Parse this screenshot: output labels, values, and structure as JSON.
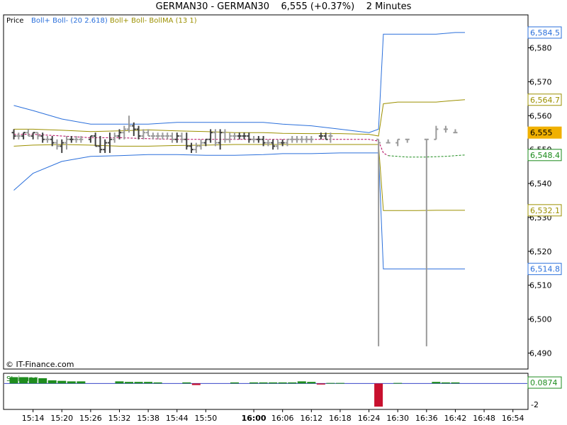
{
  "header": {
    "symbol": "GERMAN30 - GERMAN30",
    "price": "6,555",
    "change": "(+0.37%)",
    "interval": "2 Minutes"
  },
  "legend": {
    "price_label": "Price",
    "boll_label": "Boll+ Boll- (20 2.618)",
    "bollma_label": "Boll+ Boll- BollMA (13 1)"
  },
  "watermark": "© IT-Finance.com",
  "colors": {
    "boll_upper": "#2a6fdb",
    "boll_lower": "#2a6fdb",
    "bollma_band": "#9c9000",
    "bollma_mid": "#1a8a1a",
    "midline": "#b0005a",
    "candle_dark": "#404040",
    "candle_light": "#9a9a9a",
    "histogram_up": "#1e8c1e",
    "histogram_down": "#c8102e",
    "current_price_box": "#f0b000"
  },
  "chart_data": [
    {
      "type": "line",
      "title": "GERMAN30 - GERMAN30  6,555 (+0.37%)  2 Minutes",
      "y_ticks": [
        6490,
        6500,
        6510,
        6520,
        6530,
        6540,
        6550,
        6560,
        6570,
        6580
      ],
      "ylim": [
        6485.5,
        6589.5
      ],
      "x_ticks": [
        "15:14",
        "15:20",
        "15:26",
        "15:32",
        "15:38",
        "15:44",
        "15:50",
        "16:00",
        "16:06",
        "16:12",
        "16:18",
        "16:24",
        "16:30",
        "16:36",
        "16:42",
        "16:48",
        "16:54"
      ],
      "xlim": [
        908,
        1017
      ],
      "price_markers": [
        {
          "label": "6,584.5",
          "value": 6584.5,
          "series": "boll_upper"
        },
        {
          "label": "6,564.7",
          "value": 6564.7,
          "series": "bollma_upper"
        },
        {
          "label": "6,555",
          "value": 6555,
          "series": "price"
        },
        {
          "label": "6,548.4",
          "value": 6548.4,
          "series": "bollma_mid"
        },
        {
          "label": "6,532.1",
          "value": 6532.1,
          "series": "bollma_lower"
        },
        {
          "label": "6,514.8",
          "value": 6514.8,
          "series": "boll_lower"
        }
      ],
      "series": [
        {
          "key": "boll_upper",
          "x": [
            910,
            914,
            920,
            926,
            932,
            938,
            944,
            950,
            956,
            962,
            966,
            972,
            978,
            984,
            986,
            987,
            990,
            994,
            998,
            1002,
            1004
          ],
          "y": [
            6563,
            6561.5,
            6559,
            6557.5,
            6557.5,
            6557.5,
            6558,
            6558,
            6558,
            6558,
            6557.5,
            6557,
            6556,
            6555,
            6556,
            6584,
            6584,
            6584,
            6584,
            6584.5,
            6584.5
          ]
        },
        {
          "key": "boll_lower",
          "x": [
            910,
            914,
            920,
            926,
            932,
            938,
            944,
            950,
            956,
            962,
            966,
            972,
            978,
            984,
            986,
            987,
            990,
            994,
            998,
            1002,
            1004
          ],
          "y": [
            6538,
            6543,
            6546.5,
            6548,
            6548.2,
            6548.5,
            6548.5,
            6548.3,
            6548.3,
            6548.5,
            6548.8,
            6548.8,
            6549,
            6549,
            6549,
            6514.8,
            6514.8,
            6514.8,
            6514.8,
            6514.8,
            6514.8
          ]
        },
        {
          "key": "bollma_upper",
          "x": [
            910,
            914,
            920,
            926,
            932,
            938,
            944,
            950,
            956,
            962,
            966,
            972,
            978,
            984,
            986,
            987,
            990,
            994,
            998,
            1002,
            1004
          ],
          "y": [
            6556,
            6556,
            6555.7,
            6555.3,
            6555.5,
            6555.8,
            6555.5,
            6555.3,
            6555,
            6555,
            6554.8,
            6554.7,
            6554.7,
            6554.5,
            6554,
            6563.5,
            6564,
            6564,
            6564,
            6564.5,
            6564.7
          ]
        },
        {
          "key": "bollma_lower",
          "x": [
            910,
            914,
            920,
            926,
            932,
            938,
            944,
            950,
            956,
            962,
            966,
            972,
            978,
            984,
            986,
            987,
            990,
            994,
            998,
            1002,
            1004
          ],
          "y": [
            6551,
            6551.3,
            6551.5,
            6551.3,
            6551,
            6551,
            6551.2,
            6551.3,
            6551.5,
            6551.5,
            6551.5,
            6551.5,
            6551.5,
            6551.5,
            6551.5,
            6532,
            6532,
            6532,
            6532.1,
            6532.1,
            6532.1
          ]
        },
        {
          "key": "midline",
          "x": [
            910,
            914,
            920,
            926,
            932,
            938,
            944,
            950,
            956,
            962,
            966,
            972,
            978,
            984,
            986,
            987,
            988
          ],
          "y": [
            6554.5,
            6554.5,
            6554,
            6553.5,
            6553.5,
            6553.2,
            6553,
            6553,
            6553,
            6553,
            6553,
            6553,
            6553,
            6553,
            6552.5,
            6549,
            6548.2
          ]
        },
        {
          "key": "bollma_mid",
          "x": [
            988,
            992,
            996,
            1000,
            1004
          ],
          "y": [
            6548.2,
            6547.8,
            6547.8,
            6548,
            6548.4
          ]
        }
      ],
      "candles": [
        {
          "x": 910,
          "o": 6555,
          "h": 6556,
          "l": 6553,
          "c": 6554,
          "tone": "dark"
        },
        {
          "x": 911,
          "o": 6554,
          "h": 6555,
          "l": 6553,
          "c": 6554,
          "tone": "light"
        },
        {
          "x": 912,
          "o": 6554,
          "h": 6555,
          "l": 6553,
          "c": 6555,
          "tone": "dark"
        },
        {
          "x": 913,
          "o": 6555,
          "h": 6556,
          "l": 6554,
          "c": 6554,
          "tone": "light"
        },
        {
          "x": 914,
          "o": 6554,
          "h": 6555,
          "l": 6553,
          "c": 6555,
          "tone": "dark"
        },
        {
          "x": 915,
          "o": 6555,
          "h": 6555,
          "l": 6553,
          "c": 6554,
          "tone": "light"
        },
        {
          "x": 916,
          "o": 6554,
          "h": 6555,
          "l": 6552,
          "c": 6553,
          "tone": "dark"
        },
        {
          "x": 917,
          "o": 6553,
          "h": 6554,
          "l": 6552,
          "c": 6553,
          "tone": "light"
        },
        {
          "x": 918,
          "o": 6553,
          "h": 6554,
          "l": 6551,
          "c": 6552,
          "tone": "dark"
        },
        {
          "x": 919,
          "o": 6552,
          "h": 6553,
          "l": 6550,
          "c": 6551,
          "tone": "light"
        },
        {
          "x": 920,
          "o": 6551,
          "h": 6553,
          "l": 6549,
          "c": 6552,
          "tone": "dark"
        },
        {
          "x": 921,
          "o": 6552,
          "h": 6554,
          "l": 6550,
          "c": 6553,
          "tone": "light"
        },
        {
          "x": 922,
          "o": 6553,
          "h": 6554,
          "l": 6552,
          "c": 6553,
          "tone": "dark"
        },
        {
          "x": 923,
          "o": 6553,
          "h": 6554,
          "l": 6552,
          "c": 6553,
          "tone": "light"
        },
        {
          "x": 924,
          "o": 6553,
          "h": 6554,
          "l": 6552,
          "c": 6553,
          "tone": "light"
        },
        {
          "x": 926,
          "o": 6553,
          "h": 6554,
          "l": 6552,
          "c": 6554,
          "tone": "dark"
        },
        {
          "x": 927,
          "o": 6554,
          "h": 6555,
          "l": 6551,
          "c": 6551,
          "tone": "dark"
        },
        {
          "x": 928,
          "o": 6551,
          "h": 6554,
          "l": 6549,
          "c": 6550,
          "tone": "dark"
        },
        {
          "x": 929,
          "o": 6550,
          "h": 6553,
          "l": 6549,
          "c": 6552,
          "tone": "dark"
        },
        {
          "x": 930,
          "o": 6552,
          "h": 6555,
          "l": 6549,
          "c": 6553,
          "tone": "dark"
        },
        {
          "x": 931,
          "o": 6553,
          "h": 6555,
          "l": 6552,
          "c": 6554,
          "tone": "light"
        },
        {
          "x": 932,
          "o": 6554,
          "h": 6556,
          "l": 6553,
          "c": 6555,
          "tone": "dark"
        },
        {
          "x": 933,
          "o": 6555,
          "h": 6557,
          "l": 6553,
          "c": 6556,
          "tone": "light"
        },
        {
          "x": 934,
          "o": 6556,
          "h": 6560,
          "l": 6555,
          "c": 6557,
          "tone": "light"
        },
        {
          "x": 935,
          "o": 6557,
          "h": 6558,
          "l": 6554,
          "c": 6556,
          "tone": "dark"
        },
        {
          "x": 936,
          "o": 6556,
          "h": 6557,
          "l": 6553,
          "c": 6554,
          "tone": "dark"
        },
        {
          "x": 937,
          "o": 6554,
          "h": 6556,
          "l": 6553,
          "c": 6555,
          "tone": "light"
        },
        {
          "x": 938,
          "o": 6555,
          "h": 6556,
          "l": 6554,
          "c": 6554,
          "tone": "light"
        },
        {
          "x": 939,
          "o": 6554,
          "h": 6555,
          "l": 6553,
          "c": 6554,
          "tone": "light"
        },
        {
          "x": 940,
          "o": 6554,
          "h": 6555,
          "l": 6553,
          "c": 6554,
          "tone": "light"
        },
        {
          "x": 941,
          "o": 6554,
          "h": 6555,
          "l": 6553,
          "c": 6554,
          "tone": "light"
        },
        {
          "x": 942,
          "o": 6554,
          "h": 6555,
          "l": 6553,
          "c": 6554,
          "tone": "light"
        },
        {
          "x": 943,
          "o": 6554,
          "h": 6555,
          "l": 6552,
          "c": 6553,
          "tone": "light"
        },
        {
          "x": 944,
          "o": 6553,
          "h": 6555,
          "l": 6552,
          "c": 6554,
          "tone": "dark"
        },
        {
          "x": 945,
          "o": 6554,
          "h": 6555,
          "l": 6552,
          "c": 6553,
          "tone": "light"
        },
        {
          "x": 946,
          "o": 6553,
          "h": 6555,
          "l": 6550,
          "c": 6551,
          "tone": "dark"
        },
        {
          "x": 947,
          "o": 6551,
          "h": 6552,
          "l": 6549,
          "c": 6550,
          "tone": "dark"
        },
        {
          "x": 948,
          "o": 6550,
          "h": 6552,
          "l": 6549,
          "c": 6551,
          "tone": "light"
        },
        {
          "x": 949,
          "o": 6551,
          "h": 6553,
          "l": 6550,
          "c": 6552,
          "tone": "light"
        },
        {
          "x": 950,
          "o": 6552,
          "h": 6553,
          "l": 6551,
          "c": 6553,
          "tone": "dark"
        },
        {
          "x": 951,
          "o": 6553,
          "h": 6556,
          "l": 6552,
          "c": 6555,
          "tone": "dark"
        },
        {
          "x": 952,
          "o": 6555,
          "h": 6556,
          "l": 6551,
          "c": 6552,
          "tone": "light"
        },
        {
          "x": 953,
          "o": 6552,
          "h": 6556,
          "l": 6550,
          "c": 6555,
          "tone": "dark"
        },
        {
          "x": 954,
          "o": 6555,
          "h": 6556,
          "l": 6552,
          "c": 6553,
          "tone": "light"
        },
        {
          "x": 955,
          "o": 6553,
          "h": 6555,
          "l": 6552,
          "c": 6554,
          "tone": "light"
        },
        {
          "x": 956,
          "o": 6554,
          "h": 6555,
          "l": 6553,
          "c": 6554,
          "tone": "light"
        },
        {
          "x": 957,
          "o": 6554,
          "h": 6555,
          "l": 6553,
          "c": 6554,
          "tone": "dark"
        },
        {
          "x": 958,
          "o": 6554,
          "h": 6555,
          "l": 6553,
          "c": 6554,
          "tone": "dark"
        },
        {
          "x": 959,
          "o": 6554,
          "h": 6555,
          "l": 6552,
          "c": 6553,
          "tone": "dark"
        },
        {
          "x": 960,
          "o": 6553,
          "h": 6554,
          "l": 6552,
          "c": 6553,
          "tone": "light"
        },
        {
          "x": 961,
          "o": 6553,
          "h": 6554,
          "l": 6552,
          "c": 6553,
          "tone": "dark"
        },
        {
          "x": 962,
          "o": 6553,
          "h": 6554,
          "l": 6551,
          "c": 6552,
          "tone": "dark"
        },
        {
          "x": 963,
          "o": 6552,
          "h": 6553,
          "l": 6551,
          "c": 6552,
          "tone": "light"
        },
        {
          "x": 964,
          "o": 6552,
          "h": 6553,
          "l": 6550,
          "c": 6551,
          "tone": "dark"
        },
        {
          "x": 965,
          "o": 6551,
          "h": 6553,
          "l": 6550,
          "c": 6552,
          "tone": "light"
        },
        {
          "x": 966,
          "o": 6552,
          "h": 6553,
          "l": 6551,
          "c": 6552,
          "tone": "dark"
        },
        {
          "x": 967,
          "o": 6552,
          "h": 6553,
          "l": 6551,
          "c": 6553,
          "tone": "light"
        },
        {
          "x": 968,
          "o": 6553,
          "h": 6554,
          "l": 6552,
          "c": 6553,
          "tone": "light"
        },
        {
          "x": 969,
          "o": 6553,
          "h": 6554,
          "l": 6552,
          "c": 6553,
          "tone": "light"
        },
        {
          "x": 970,
          "o": 6553,
          "h": 6554,
          "l": 6552,
          "c": 6553,
          "tone": "light"
        },
        {
          "x": 971,
          "o": 6553,
          "h": 6554,
          "l": 6552,
          "c": 6553,
          "tone": "light"
        },
        {
          "x": 972,
          "o": 6553,
          "h": 6554,
          "l": 6552,
          "c": 6553,
          "tone": "light"
        },
        {
          "x": 974,
          "o": 6554,
          "h": 6555,
          "l": 6553,
          "c": 6554,
          "tone": "dark"
        },
        {
          "x": 975,
          "o": 6554,
          "h": 6555,
          "l": 6553,
          "c": 6553,
          "tone": "dark"
        },
        {
          "x": 976,
          "o": 6554,
          "h": 6555,
          "l": 6552,
          "c": 6554,
          "tone": "light"
        },
        {
          "x": 986,
          "o": 6553,
          "h": 6553,
          "l": 6492,
          "c": 6552,
          "tone": "light"
        },
        {
          "x": 988,
          "o": 6552,
          "h": 6553,
          "l": 6552,
          "c": 6552,
          "tone": "light"
        },
        {
          "x": 990,
          "o": 6552,
          "h": 6553,
          "l": 6551,
          "c": 6553,
          "tone": "light"
        },
        {
          "x": 992,
          "o": 6553,
          "h": 6553,
          "l": 6552,
          "c": 6553,
          "tone": "light"
        },
        {
          "x": 996,
          "o": 6553,
          "h": 6553,
          "l": 6492,
          "c": 6553,
          "tone": "light"
        },
        {
          "x": 998,
          "o": 6553,
          "h": 6557,
          "l": 6553,
          "c": 6556,
          "tone": "light"
        },
        {
          "x": 1000,
          "o": 6556,
          "h": 6557,
          "l": 6555,
          "c": 6556,
          "tone": "light"
        },
        {
          "x": 1002,
          "o": 6555,
          "h": 6556,
          "l": 6555,
          "c": 6555,
          "tone": "light"
        }
      ]
    },
    {
      "type": "bar",
      "title": "Steigung",
      "y_ticks": [
        -2
      ],
      "ylim": [
        -2.4,
        0.9
      ],
      "current_value_label": "0.0874",
      "current_value": 0.0874,
      "x": [
        910,
        912,
        914,
        916,
        918,
        920,
        922,
        924,
        932,
        934,
        936,
        938,
        940,
        946,
        948,
        956,
        960,
        962,
        964,
        966,
        968,
        970,
        972,
        974,
        976,
        978,
        986,
        990,
        998,
        1000,
        1002
      ],
      "values": [
        0.6,
        0.6,
        0.55,
        0.5,
        0.3,
        0.25,
        0.2,
        0.2,
        0.2,
        0.15,
        0.15,
        0.15,
        0.1,
        0.1,
        -0.15,
        0.1,
        0.1,
        0.1,
        0.1,
        0.1,
        0.1,
        0.2,
        0.15,
        -0.1,
        0.05,
        0.05,
        -2.2,
        0.05,
        0.15,
        0.1,
        0.1
      ]
    }
  ]
}
